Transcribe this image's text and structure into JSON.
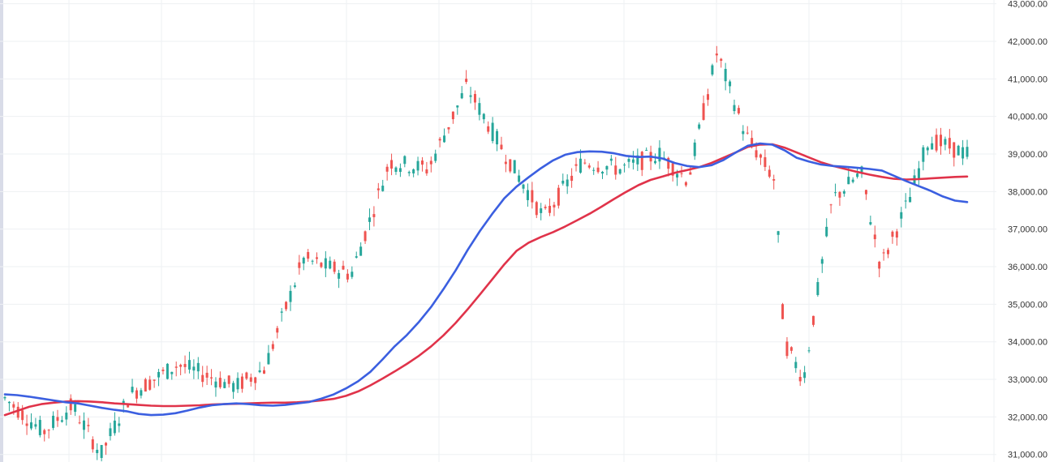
{
  "chart_data": {
    "type": "candlestick",
    "ylim": [
      30800,
      43100
    ],
    "y_ticks": [
      "31,000.00",
      "32,000.00",
      "33,000.00",
      "34,000.00",
      "35,000.00",
      "36,000.00",
      "37,000.00",
      "38,000.00",
      "39,000.00",
      "40,000.00",
      "41,000.00",
      "42,000.00",
      "43,000.00"
    ],
    "y_tick_values": [
      31000,
      32000,
      33000,
      34000,
      35000,
      36000,
      37000,
      38000,
      39000,
      40000,
      41000,
      42000,
      43000
    ],
    "grid": true,
    "colors": {
      "up": "#26a69a",
      "down": "#ef5350",
      "ma_fast": "#3b5fe0",
      "ma_slow": "#e0334a",
      "grid": "#eef0f3",
      "label": "#333333"
    },
    "ma_fast": [
      32600,
      32580,
      32540,
      32490,
      32440,
      32390,
      32360,
      32300,
      32240,
      32190,
      32150,
      32080,
      32050,
      32060,
      32100,
      32170,
      32250,
      32310,
      32340,
      32360,
      32340,
      32310,
      32300,
      32320,
      32360,
      32400,
      32490,
      32600,
      32760,
      32950,
      33200,
      33530,
      33880,
      34180,
      34530,
      34930,
      35400,
      35900,
      36450,
      36950,
      37400,
      37820,
      38130,
      38380,
      38620,
      38830,
      38980,
      39050,
      39070,
      39060,
      39020,
      38950,
      38920,
      38930,
      38880,
      38760,
      38680,
      38650,
      38700,
      38840,
      39040,
      39220,
      39280,
      39250,
      39100,
      38900,
      38800,
      38720,
      38680,
      38660,
      38630,
      38600,
      38560,
      38420,
      38280,
      38150,
      38020,
      37870,
      37760,
      37720
    ],
    "ma_slow": [
      32050,
      32160,
      32270,
      32340,
      32380,
      32410,
      32420,
      32410,
      32390,
      32360,
      32340,
      32320,
      32300,
      32290,
      32290,
      32300,
      32310,
      32330,
      32340,
      32350,
      32360,
      32370,
      32380,
      32380,
      32390,
      32410,
      32440,
      32480,
      32560,
      32680,
      32840,
      33020,
      33210,
      33410,
      33630,
      33880,
      34170,
      34500,
      34870,
      35260,
      35660,
      36060,
      36420,
      36640,
      36790,
      36920,
      37070,
      37240,
      37410,
      37600,
      37800,
      37990,
      38170,
      38310,
      38400,
      38500,
      38570,
      38650,
      38760,
      38900,
      39040,
      39190,
      39250,
      39260,
      39170,
      39040,
      38910,
      38780,
      38680,
      38600,
      38520,
      38450,
      38390,
      38340,
      38320,
      38330,
      38350,
      38370,
      38390,
      38400
    ]
  }
}
